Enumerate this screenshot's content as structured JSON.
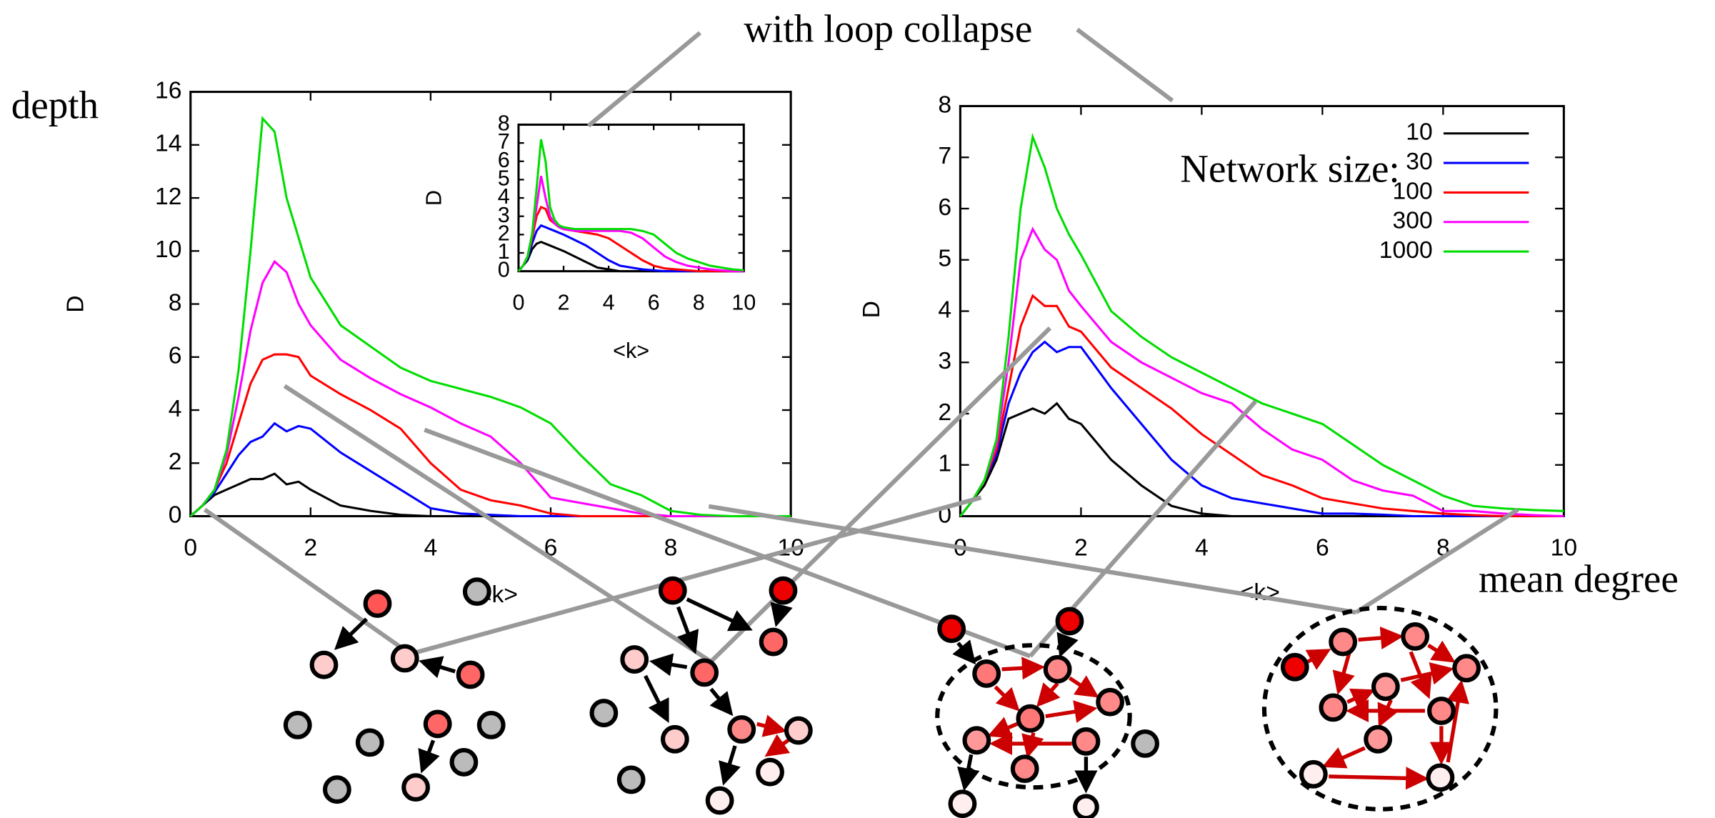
{
  "annotations": {
    "loop_collapse": "with loop collapse",
    "depth": "depth",
    "mean_degree": "mean degree"
  },
  "chart_data": [
    {
      "type": "line",
      "xlabel": "<k>",
      "ylabel": "D",
      "x": [
        0,
        0.2,
        0.4,
        0.6,
        0.8,
        1.0,
        1.2,
        1.4,
        1.6,
        1.8,
        2.0,
        2.5,
        3,
        3.5,
        4,
        4.5,
        5,
        5.5,
        6,
        6.5,
        7,
        7.5,
        8,
        8.5,
        9,
        9.5,
        10
      ],
      "xlim": [
        0,
        10
      ],
      "xticks": [
        0,
        2,
        4,
        6,
        8,
        10
      ],
      "ylim": [
        0,
        16
      ],
      "yticks": [
        0,
        2,
        4,
        6,
        8,
        10,
        12,
        14,
        16
      ],
      "series": [
        {
          "color": "#000000",
          "values": [
            0,
            0.4,
            0.8,
            1,
            1.2,
            1.4,
            1.4,
            1.6,
            1.2,
            1.3,
            1,
            0.4,
            0.2,
            0.05,
            0,
            0,
            0,
            0,
            0,
            0,
            0,
            0,
            0,
            0,
            0,
            0,
            0
          ]
        },
        {
          "color": "#0000ff",
          "values": [
            0,
            0.4,
            0.9,
            1.6,
            2.3,
            2.8,
            3,
            3.5,
            3.2,
            3.4,
            3.3,
            2.4,
            1.7,
            1,
            0.3,
            0.1,
            0.05,
            0,
            0,
            0,
            0,
            0,
            0,
            0,
            0,
            0,
            0
          ]
        },
        {
          "color": "#ff0000",
          "values": [
            0,
            0.4,
            1,
            2,
            3.5,
            5,
            5.9,
            6.1,
            6.1,
            6,
            5.3,
            4.6,
            4,
            3.3,
            2,
            1,
            0.6,
            0.4,
            0.1,
            0,
            0,
            0,
            0,
            0,
            0,
            0,
            0
          ]
        },
        {
          "color": "#ff00ff",
          "values": [
            0,
            0.4,
            1,
            2.3,
            4.5,
            7,
            8.8,
            9.6,
            9.2,
            8,
            7.2,
            5.9,
            5.2,
            4.6,
            4.1,
            3.5,
            3,
            2,
            0.7,
            0.5,
            0.3,
            0.1,
            0,
            0,
            0,
            0,
            0
          ]
        },
        {
          "color": "#00dd00",
          "values": [
            0,
            0.4,
            1,
            2.5,
            5.5,
            10,
            15,
            14.5,
            12,
            10.5,
            9,
            7.2,
            6.4,
            5.6,
            5.1,
            4.8,
            4.5,
            4.1,
            3.5,
            2.3,
            1.2,
            0.8,
            0.2,
            0.05,
            0,
            0,
            0
          ]
        }
      ]
    },
    {
      "type": "line",
      "xlabel": "<k>",
      "ylabel": "D",
      "x": [
        0,
        0.2,
        0.4,
        0.6,
        0.8,
        1.0,
        1.2,
        1.4,
        1.6,
        1.8,
        2.0,
        2.5,
        3,
        3.5,
        4,
        4.5,
        5,
        5.5,
        6,
        6.5,
        7,
        7.5,
        8,
        8.5,
        9,
        9.5,
        10
      ],
      "xlim": [
        0,
        10
      ],
      "xticks": [
        0,
        2,
        4,
        6,
        8,
        10
      ],
      "ylim": [
        0,
        8
      ],
      "yticks": [
        0,
        1,
        2,
        3,
        4,
        5,
        6,
        7,
        8
      ],
      "series": [
        {
          "color": "#000000",
          "values": [
            0,
            0.3,
            0.6,
            1.2,
            1.5,
            1.6,
            1.5,
            1.4,
            1.3,
            1.2,
            1.1,
            0.8,
            0.5,
            0.2,
            0.1,
            0,
            0,
            0,
            0,
            0,
            0,
            0,
            0,
            0,
            0,
            0,
            0
          ]
        },
        {
          "color": "#0000ff",
          "values": [
            0,
            0.3,
            0.7,
            1.5,
            2.2,
            2.5,
            2.4,
            2.3,
            2.2,
            2.1,
            2,
            1.7,
            1.4,
            1,
            0.6,
            0.3,
            0.2,
            0.1,
            0.05,
            0,
            0,
            0,
            0,
            0,
            0,
            0,
            0
          ]
        },
        {
          "color": "#ff0000",
          "values": [
            0,
            0.3,
            0.8,
            1.8,
            3,
            3.5,
            3.4,
            2.8,
            2.6,
            2.4,
            2.3,
            2.2,
            2.1,
            2,
            1.8,
            1.4,
            1,
            0.6,
            0.3,
            0.15,
            0.1,
            0.05,
            0,
            0,
            0,
            0,
            0
          ]
        },
        {
          "color": "#ff00ff",
          "values": [
            0,
            0.3,
            0.8,
            2,
            3.5,
            5.2,
            4,
            3,
            2.6,
            2.4,
            2.3,
            2.2,
            2.2,
            2.2,
            2.2,
            2.2,
            2.1,
            1.8,
            1.3,
            0.8,
            0.5,
            0.3,
            0.2,
            0.1,
            0.05,
            0,
            0
          ]
        },
        {
          "color": "#00dd00",
          "values": [
            0,
            0.3,
            0.8,
            2,
            4.5,
            7.2,
            6,
            3.5,
            2.8,
            2.5,
            2.4,
            2.3,
            2.3,
            2.3,
            2.3,
            2.3,
            2.3,
            2.2,
            2,
            1.5,
            1,
            0.7,
            0.5,
            0.3,
            0.2,
            0.1,
            0.05
          ]
        }
      ]
    },
    {
      "type": "line",
      "xlabel": "<k>",
      "ylabel": "D",
      "legend_title": "Network size:",
      "legend": "upper right",
      "x": [
        0,
        0.2,
        0.4,
        0.6,
        0.8,
        1.0,
        1.2,
        1.4,
        1.6,
        1.8,
        2.0,
        2.5,
        3,
        3.5,
        4,
        4.5,
        5,
        5.5,
        6,
        6.5,
        7,
        7.5,
        8,
        8.5,
        9,
        9.5,
        10
      ],
      "xlim": [
        0,
        10
      ],
      "xticks": [
        0,
        2,
        4,
        6,
        8,
        10
      ],
      "ylim": [
        0,
        8
      ],
      "yticks": [
        0,
        1,
        2,
        3,
        4,
        5,
        6,
        7,
        8
      ],
      "series": [
        {
          "name": "10",
          "color": "#000000",
          "values": [
            0,
            0.3,
            0.6,
            1.1,
            1.9,
            2.0,
            2.1,
            2.0,
            2.2,
            1.9,
            1.8,
            1.1,
            0.6,
            0.2,
            0.05,
            0,
            0,
            0,
            0,
            0,
            0,
            0,
            0,
            0,
            0,
            0,
            0
          ]
        },
        {
          "name": "30",
          "color": "#0000ff",
          "values": [
            0,
            0.3,
            0.7,
            1.2,
            2.2,
            2.8,
            3.2,
            3.4,
            3.2,
            3.3,
            3.3,
            2.5,
            1.8,
            1.1,
            0.6,
            0.35,
            0.25,
            0.15,
            0.05,
            0.05,
            0.03,
            0,
            0,
            0,
            0,
            0,
            0
          ]
        },
        {
          "name": "100",
          "color": "#ff0000",
          "values": [
            0,
            0.3,
            0.7,
            1.3,
            2.5,
            3.7,
            4.3,
            4.1,
            4.1,
            3.7,
            3.6,
            2.9,
            2.5,
            2.1,
            1.6,
            1.2,
            0.8,
            0.6,
            0.35,
            0.25,
            0.15,
            0.1,
            0.05,
            0.02,
            0,
            0,
            0
          ]
        },
        {
          "name": "300",
          "color": "#ff00ff",
          "values": [
            0,
            0.3,
            0.7,
            1.4,
            3,
            5,
            5.6,
            5.2,
            5,
            4.4,
            4.1,
            3.4,
            3,
            2.7,
            2.4,
            2.2,
            1.7,
            1.3,
            1.1,
            0.7,
            0.5,
            0.4,
            0.1,
            0.1,
            0.05,
            0.02,
            0
          ]
        },
        {
          "name": "1000",
          "color": "#00dd00",
          "values": [
            0,
            0.3,
            0.7,
            1.5,
            3.5,
            6,
            7.4,
            6.8,
            6,
            5.5,
            5.1,
            4,
            3.5,
            3.1,
            2.8,
            2.5,
            2.2,
            2,
            1.8,
            1.4,
            1,
            0.7,
            0.4,
            0.2,
            0.15,
            0.12,
            0.1
          ]
        }
      ]
    }
  ]
}
